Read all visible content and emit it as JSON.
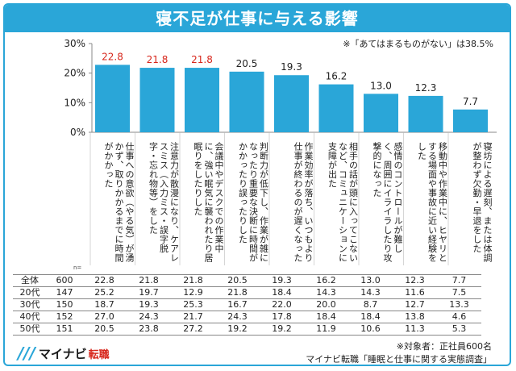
{
  "header": {
    "title": "寝不足が仕事に与える影響"
  },
  "note_top": "※「あてはまるものがない」は38.5%",
  "colors": {
    "accent": "#2aa6d8",
    "bar": "#2aa6d8",
    "highlight": "#d7261b"
  },
  "chart_data": {
    "type": "bar",
    "title": "寝不足が仕事に与える影響",
    "ylim": [
      0,
      30
    ],
    "yticks": [
      "0%",
      "10%",
      "20%",
      "30%"
    ],
    "grid": false,
    "categories": [
      "仕事への意欲（やる気）が湧かず、取りかかるまでに時間がかかった",
      "注意力が散漫になり、ケアレスミス（入力ミス・誤字脱字・忘れ物等）をした",
      "会議中やデスクでの作業中に、強い眠気に襲われたり居眠りをしたりした",
      "判断力が低下し、作業が雑になったり重要な決断に時間がかかったり誤ったりした",
      "作業効率が落ち、いつもより仕事が終わるのが遅くなった",
      "相手の話が頭に入ってこないなど、コミュニケーションに支障が出た",
      "感情のコントロールが難しく、周囲にイライラしたり攻撃的になった",
      "移動中や作業中に、ヒヤリとする場面や事故に近い経験をした",
      "寝坊による遅刻、または体調が整わず欠勤・早退をした"
    ],
    "values": [
      22.8,
      21.8,
      21.8,
      20.5,
      19.3,
      16.2,
      13.0,
      12.3,
      7.7
    ],
    "value_labels": [
      "22.8",
      "21.8",
      "21.8",
      "20.5",
      "19.3",
      "16.2",
      "13.0",
      "12.3",
      "7.7"
    ],
    "highlighted": [
      true,
      true,
      true,
      false,
      false,
      false,
      false,
      false,
      false
    ],
    "table": {
      "n_header": "n=",
      "rows": [
        {
          "label": "全体",
          "n": "600",
          "values": [
            "22.8",
            "21.8",
            "21.8",
            "20.5",
            "19.3",
            "16.2",
            "13.0",
            "12.3",
            "7.7"
          ]
        },
        {
          "label": "20代",
          "n": "147",
          "values": [
            "25.2",
            "19.7",
            "12.9",
            "21.8",
            "18.4",
            "14.3",
            "14.3",
            "11.6",
            "7.5"
          ]
        },
        {
          "label": "30代",
          "n": "150",
          "values": [
            "18.7",
            "19.3",
            "25.3",
            "16.7",
            "22.0",
            "20.0",
            "8.7",
            "12.7",
            "13.3"
          ]
        },
        {
          "label": "40代",
          "n": "152",
          "values": [
            "27.0",
            "24.3",
            "21.7",
            "24.3",
            "17.8",
            "18.4",
            "18.4",
            "13.8",
            "4.6"
          ]
        },
        {
          "label": "50代",
          "n": "151",
          "values": [
            "20.5",
            "23.8",
            "27.2",
            "19.2",
            "19.2",
            "11.9",
            "10.6",
            "11.3",
            "5.3"
          ]
        }
      ]
    }
  },
  "footer": {
    "note": "※対象者：正社員600名",
    "source": "マイナビ転職「睡眠と仕事に関する実態調査」"
  },
  "logo": {
    "mark": "///",
    "name": "マイナビ",
    "sub": "転職"
  }
}
